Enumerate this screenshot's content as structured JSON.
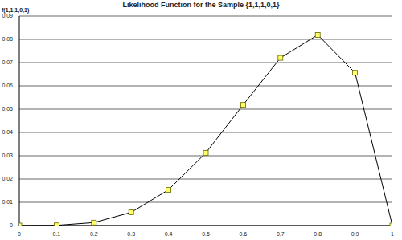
{
  "chart_data": {
    "type": "line",
    "title": "Likelihood Function for the Sample {1,1,1,0,1}",
    "y_label": "f(1,1,1,0,1)",
    "x": [
      0,
      0.1,
      0.2,
      0.3,
      0.4,
      0.5,
      0.6,
      0.7,
      0.8,
      0.9,
      1
    ],
    "values": [
      0,
      9e-05,
      0.00128,
      0.00567,
      0.01536,
      0.03125,
      0.05184,
      0.07203,
      0.08192,
      0.06561,
      0
    ],
    "color": "#000000",
    "marker": "square",
    "xlim": [
      0,
      1
    ],
    "xticks": [
      0,
      0.1,
      0.2,
      0.3,
      0.4,
      0.5,
      0.6,
      0.7,
      0.8,
      0.9,
      1
    ],
    "ylim": [
      0,
      0.09
    ],
    "yticks": [
      0,
      0.01,
      0.02,
      0.03,
      0.04,
      0.05,
      0.06,
      0.07,
      0.08,
      0.09
    ],
    "grid": true
  }
}
